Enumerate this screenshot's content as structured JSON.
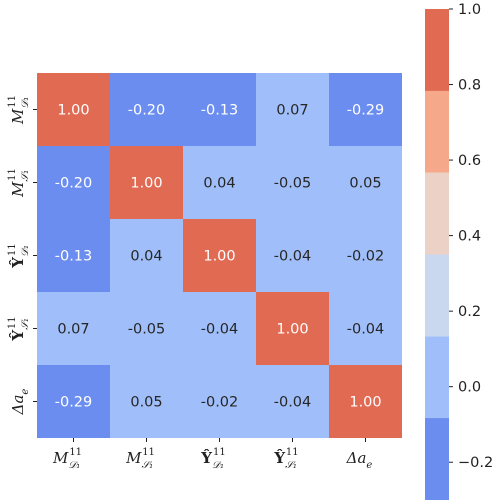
{
  "chart_data": {
    "type": "heatmap",
    "labels": [
      {
        "base": "M",
        "sub": "𝒟₁",
        "sup": "11"
      },
      {
        "base": "M",
        "sub": "𝒮₁",
        "sup": "11"
      },
      {
        "base": "Ŷ",
        "sub": "𝒟₁",
        "sup": "11"
      },
      {
        "base": "Ŷ",
        "sub": "𝒮₁",
        "sup": "11"
      },
      {
        "base": "Δa",
        "sub": "e",
        "sup": ""
      }
    ],
    "matrix": [
      [
        1.0,
        -0.2,
        -0.13,
        0.07,
        -0.29
      ],
      [
        -0.2,
        1.0,
        0.04,
        -0.05,
        0.05
      ],
      [
        -0.13,
        0.04,
        1.0,
        -0.04,
        -0.02
      ],
      [
        0.07,
        -0.05,
        -0.04,
        1.0,
        -0.04
      ],
      [
        -0.29,
        0.05,
        -0.02,
        -0.04,
        1.0
      ]
    ],
    "colorbar": {
      "min": -0.3,
      "max": 1.0,
      "ticks": [
        "1.0",
        "0.8",
        "0.6",
        "0.4",
        "0.2",
        "0.0",
        "−0.2"
      ],
      "tick_values": [
        1.0,
        0.8,
        0.6,
        0.4,
        0.2,
        0.0,
        -0.2
      ],
      "bands": [
        {
          "from": -0.3,
          "to": -0.083,
          "color": "#6b8df0"
        },
        {
          "from": -0.083,
          "to": 0.133,
          "color": "#a0bffa"
        },
        {
          "from": 0.133,
          "to": 0.35,
          "color": "#cad8ef"
        },
        {
          "from": 0.35,
          "to": 0.567,
          "color": "#ecd2c6"
        },
        {
          "from": 0.567,
          "to": 0.783,
          "color": "#f5a98a"
        },
        {
          "from": 0.783,
          "to": 1.0,
          "color": "#e16a53"
        }
      ]
    }
  }
}
